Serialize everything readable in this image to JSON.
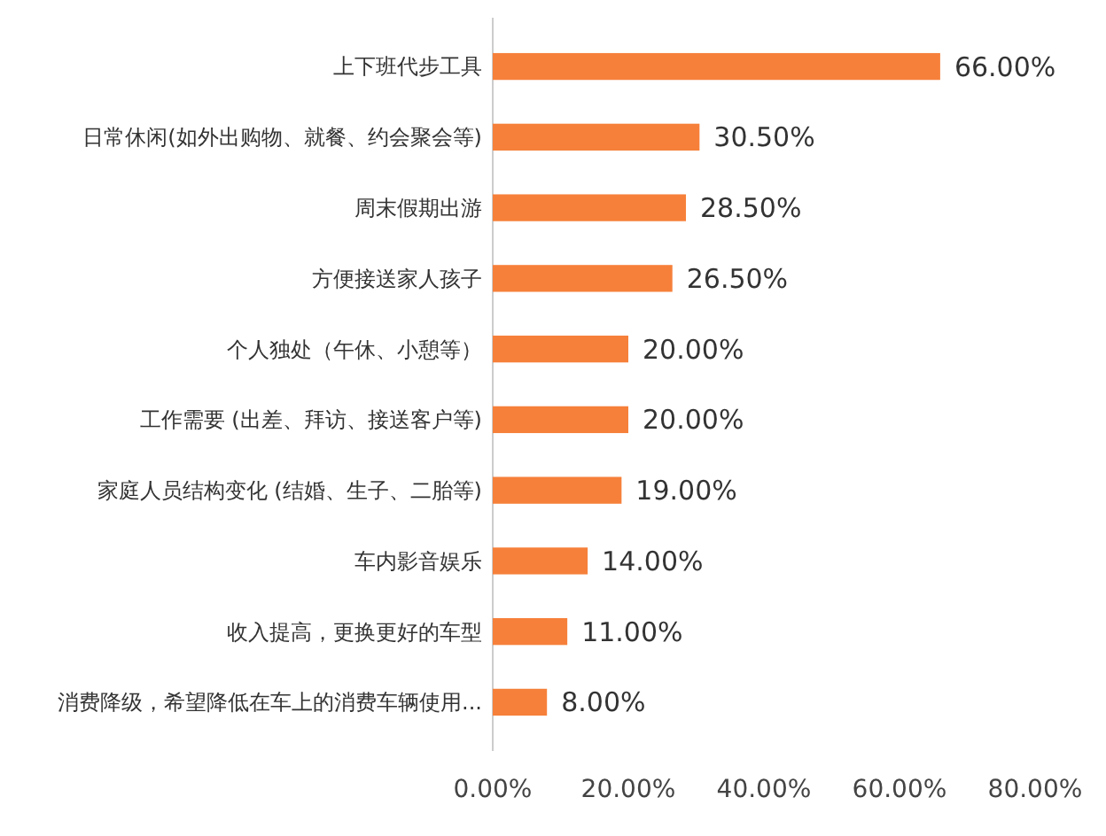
{
  "chart_data": {
    "type": "bar",
    "orientation": "horizontal",
    "categories": [
      "上下班代步工具",
      "日常休闲(如外出购物、就餐、约会聚会等)",
      "周末假期出游",
      "方便接送家人孩子",
      "个人独处（午休、小憩等）",
      "工作需要 (出差、拜访、接送客户等)",
      "家庭人员结构变化 (结婚、生子、二胎等)",
      "车内影音娱乐",
      "收入提高，更换更好的车型",
      "消费降级，希望降低在车上的消费车辆使用..."
    ],
    "values": [
      66,
      30.5,
      28.5,
      26.5,
      20,
      20,
      19,
      14,
      11,
      8
    ],
    "value_labels": [
      "66.00%",
      "30.50%",
      "28.50%",
      "26.50%",
      "20.00%",
      "20.00%",
      "19.00%",
      "14.00%",
      "11.00%",
      "8.00%"
    ],
    "color": "#f6803a",
    "xlim": [
      0,
      80
    ],
    "xticks": [
      {
        "value": 0,
        "label": "0.00%"
      },
      {
        "value": 20,
        "label": "20.00%"
      },
      {
        "value": 40,
        "label": "40.00%"
      },
      {
        "value": 60,
        "label": "60.00%"
      },
      {
        "value": 80,
        "label": "80.00%"
      }
    ]
  }
}
